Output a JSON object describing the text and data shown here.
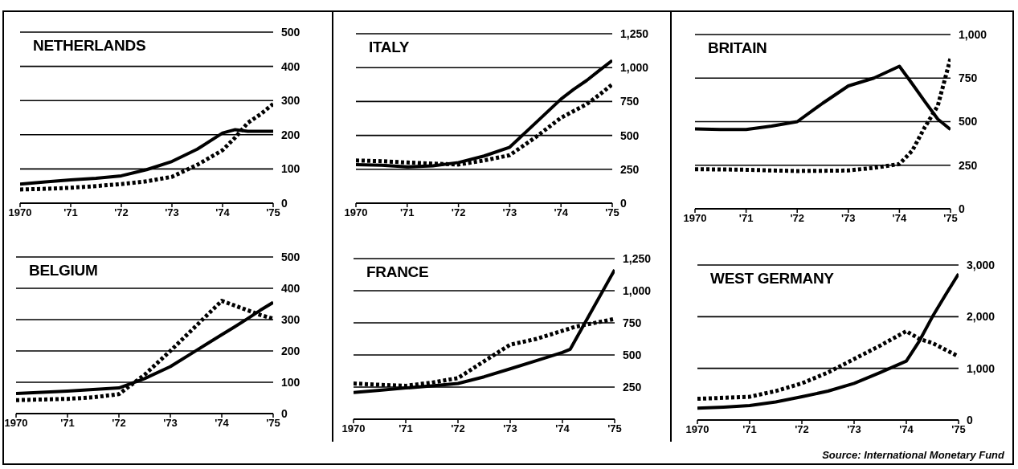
{
  "chart_data": [
    {
      "type": "line",
      "title": "NETHERLANDS",
      "x": [
        1970,
        1970.5,
        1971,
        1971.5,
        1972,
        1972.5,
        1973,
        1973.5,
        1974,
        1974.25,
        1974.5,
        1974.75,
        1975
      ],
      "xlim": [
        1970,
        1975
      ],
      "xticks": [
        {
          "value": 1970,
          "label": "1970"
        },
        {
          "value": 1971,
          "label": "'71"
        },
        {
          "value": 1972,
          "label": "'72"
        },
        {
          "value": 1973,
          "label": "'73"
        },
        {
          "value": 1974,
          "label": "'74"
        },
        {
          "value": 1975,
          "label": "'75"
        }
      ],
      "ylim": [
        0,
        500
      ],
      "yticks": [
        0,
        100,
        200,
        300,
        400,
        500
      ],
      "grid": "y",
      "series": [
        {
          "color": "#000000",
          "line_style": "solid",
          "values": [
            56,
            62,
            68,
            73,
            80,
            98,
            122,
            158,
            205,
            215,
            210,
            210,
            210
          ]
        },
        {
          "color": "#000000",
          "line_style": "dotted",
          "values": [
            40,
            42,
            45,
            50,
            56,
            64,
            77,
            112,
            155,
            192,
            235,
            260,
            290
          ]
        }
      ]
    },
    {
      "type": "line",
      "title": "ITALY",
      "x": [
        1970,
        1970.5,
        1971,
        1971.5,
        1972,
        1972.5,
        1973,
        1973.5,
        1974,
        1974.25,
        1974.5,
        1974.75,
        1975
      ],
      "xlim": [
        1970,
        1975
      ],
      "xticks": [
        {
          "value": 1970,
          "label": "1970"
        },
        {
          "value": 1971,
          "label": "'71"
        },
        {
          "value": 1972,
          "label": "'72"
        },
        {
          "value": 1973,
          "label": "'73"
        },
        {
          "value": 1974,
          "label": "'74"
        },
        {
          "value": 1975,
          "label": "'75"
        }
      ],
      "ylim": [
        0,
        1250
      ],
      "yticks": [
        0,
        250,
        500,
        750,
        {
          "value": 1000,
          "label": "1,000"
        },
        {
          "value": 1250,
          "label": "1,250"
        }
      ],
      "grid": "y",
      "series": [
        {
          "color": "#000000",
          "line_style": "solid",
          "values": [
            285,
            280,
            268,
            275,
            300,
            348,
            413,
            590,
            768,
            840,
            905,
            980,
            1053
          ]
        },
        {
          "color": "#000000",
          "line_style": "dotted",
          "values": [
            315,
            310,
            300,
            292,
            285,
            315,
            354,
            485,
            630,
            680,
            730,
            800,
            876
          ]
        }
      ]
    },
    {
      "type": "line",
      "title": "BRITAIN",
      "x": [
        1970,
        1970.5,
        1971,
        1971.5,
        1972,
        1972.5,
        1973,
        1973.5,
        1974,
        1974.25,
        1974.5,
        1974.75,
        1975
      ],
      "xlim": [
        1970,
        1975
      ],
      "xticks": [
        {
          "value": 1970,
          "label": "1970"
        },
        {
          "value": 1971,
          "label": "'71"
        },
        {
          "value": 1972,
          "label": "'72"
        },
        {
          "value": 1973,
          "label": "'73"
        },
        {
          "value": 1974,
          "label": "'74"
        },
        {
          "value": 1975,
          "label": "'75"
        }
      ],
      "ylim": [
        0,
        1000
      ],
      "yticks": [
        0,
        250,
        500,
        750,
        {
          "value": 1000,
          "label": "1,000"
        }
      ],
      "grid": "y",
      "series": [
        {
          "color": "#000000",
          "line_style": "solid",
          "values": [
            458,
            455,
            455,
            475,
            500,
            606,
            705,
            750,
            818,
            718,
            615,
            515,
            455
          ]
        },
        {
          "color": "#000000",
          "line_style": "dotted",
          "values": [
            227,
            226,
            224,
            220,
            217,
            218,
            220,
            235,
            257,
            333,
            470,
            590,
            864
          ]
        }
      ]
    },
    {
      "type": "line",
      "title": "BELGIUM",
      "x": [
        1970,
        1970.5,
        1971,
        1971.5,
        1972,
        1972.5,
        1973,
        1973.5,
        1974,
        1974.25,
        1974.5,
        1974.75,
        1975
      ],
      "xlim": [
        1970,
        1975
      ],
      "xticks": [
        {
          "value": 1970,
          "label": "1970"
        },
        {
          "value": 1971,
          "label": "'71"
        },
        {
          "value": 1972,
          "label": "'72"
        },
        {
          "value": 1973,
          "label": "'73"
        },
        {
          "value": 1974,
          "label": "'74"
        },
        {
          "value": 1975,
          "label": "'75"
        }
      ],
      "ylim": [
        0,
        500
      ],
      "yticks": [
        0,
        100,
        200,
        300,
        400,
        500
      ],
      "grid": "y",
      "series": [
        {
          "color": "#000000",
          "line_style": "solid",
          "values": [
            64,
            68,
            72,
            77,
            82,
            112,
            150,
            201,
            252,
            277,
            303,
            330,
            355
          ]
        },
        {
          "color": "#000000",
          "line_style": "dotted",
          "values": [
            43,
            45,
            47,
            52,
            62,
            124,
            200,
            280,
            360,
            345,
            330,
            315,
            303
          ]
        }
      ]
    },
    {
      "type": "line",
      "title": "FRANCE",
      "x": [
        1970,
        1970.5,
        1971,
        1971.5,
        1972,
        1972.5,
        1973,
        1973.5,
        1974,
        1974.25,
        1974.5,
        1974.75,
        1975
      ],
      "xlim": [
        1970,
        1975
      ],
      "xticks": [
        {
          "value": 1970,
          "label": "1970"
        },
        {
          "value": 1971,
          "label": "'71"
        },
        {
          "value": 1972,
          "label": "'72"
        },
        {
          "value": 1973,
          "label": "'73"
        },
        {
          "value": 1974,
          "label": "'74"
        },
        {
          "value": 1975,
          "label": "'75"
        }
      ],
      "ylim": [
        0,
        1250
      ],
      "yticks": [
        250,
        500,
        750,
        {
          "value": 1000,
          "label": "1,000"
        },
        {
          "value": 1250,
          "label": "1,250"
        }
      ],
      "grid": "y",
      "series": [
        {
          "color": "#000000",
          "line_style": "solid",
          "x": [
            1970,
            1970.5,
            1971,
            1971.5,
            1972,
            1972.5,
            1973,
            1973.5,
            1974,
            1974.15,
            1974.5,
            1975
          ],
          "values": [
            208,
            225,
            243,
            260,
            278,
            330,
            392,
            455,
            520,
            545,
            800,
            1163
          ]
        },
        {
          "color": "#000000",
          "line_style": "dotted",
          "values": [
            278,
            268,
            260,
            285,
            320,
            451,
            580,
            625,
            688,
            720,
            740,
            760,
            781
          ]
        }
      ]
    },
    {
      "type": "line",
      "title": "WEST GERMANY",
      "x": [
        1970,
        1970.5,
        1971,
        1971.5,
        1972,
        1972.5,
        1973,
        1973.5,
        1974,
        1974.25,
        1974.5,
        1974.75,
        1975
      ],
      "xlim": [
        1970,
        1975
      ],
      "xticks": [
        {
          "value": 1970,
          "label": "1970"
        },
        {
          "value": 1971,
          "label": "'71"
        },
        {
          "value": 1972,
          "label": "'72"
        },
        {
          "value": 1973,
          "label": "'73"
        },
        {
          "value": 1974,
          "label": "'74"
        },
        {
          "value": 1975,
          "label": "'75"
        }
      ],
      "ylim": [
        0,
        3000
      ],
      "yticks": [
        0,
        {
          "value": 1000,
          "label": "1,000"
        },
        {
          "value": 2000,
          "label": "2,000"
        },
        {
          "value": 3000,
          "label": "3,000"
        }
      ],
      "grid": "y",
      "series": [
        {
          "color": "#000000",
          "line_style": "solid",
          "values": [
            230,
            250,
            280,
            350,
            450,
            560,
            710,
            920,
            1140,
            1530,
            2000,
            2420,
            2830
          ]
        },
        {
          "color": "#000000",
          "line_style": "dotted",
          "values": [
            410,
            430,
            450,
            560,
            710,
            920,
            1180,
            1440,
            1720,
            1570,
            1490,
            1360,
            1230
          ]
        }
      ],
      "annotations": [
        "Source: International Monetary Fund"
      ]
    }
  ]
}
